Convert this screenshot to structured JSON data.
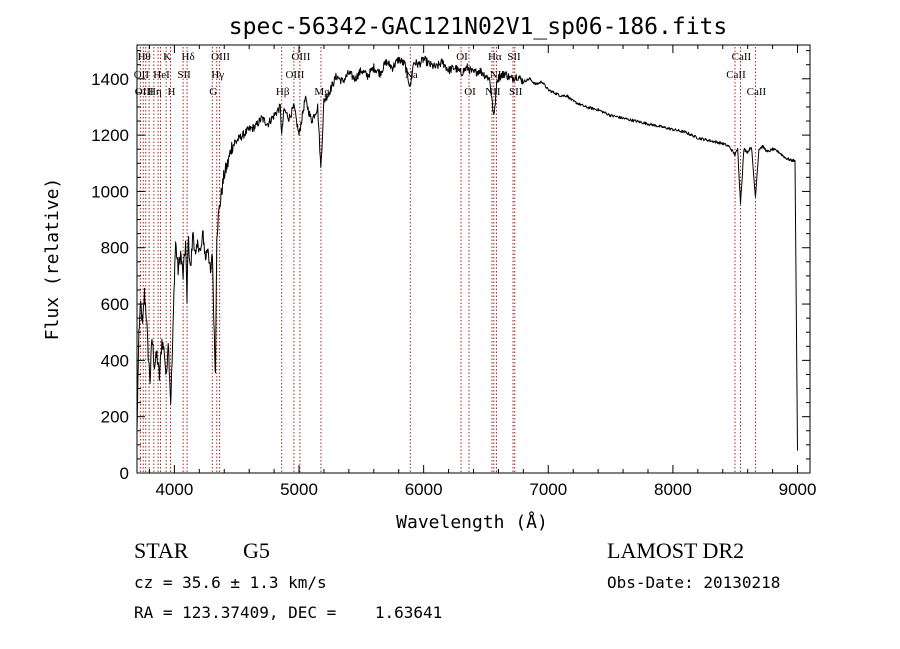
{
  "chart_data": {
    "type": "line",
    "title": "spec-56342-GAC121N02V1_sp06-186.fits",
    "xlabel": "Wavelength (Å)",
    "ylabel": "Flux (relative)",
    "xlim": [
      3700,
      9100
    ],
    "ylim": [
      0,
      1520
    ],
    "xticks": [
      4000,
      5000,
      6000,
      7000,
      8000,
      9000
    ],
    "yticks": [
      0,
      200,
      400,
      600,
      800,
      1000,
      1200,
      1400
    ],
    "grid": false,
    "line_color": "#000000",
    "marker_color": "#a0281e",
    "series": [
      {
        "x": [
          3700,
          3715,
          3730,
          3745,
          3760,
          3775,
          3790,
          3805,
          3820,
          3840,
          3860,
          3880,
          3900,
          3920,
          3935,
          3950,
          3970,
          3985,
          4000,
          4010,
          4030,
          4050,
          4070,
          4090,
          4101,
          4110,
          4130,
          4150,
          4170,
          4190,
          4210,
          4230,
          4250,
          4270,
          4290,
          4305,
          4320,
          4330,
          4340,
          4360,
          4380,
          4400,
          4430,
          4460,
          4500,
          4550,
          4600,
          4650,
          4700,
          4750,
          4800,
          4850,
          4861,
          4880,
          4920,
          4960,
          5000,
          5050,
          5100,
          5150,
          5175,
          5200,
          5250,
          5300,
          5350,
          5400,
          5450,
          5500,
          5550,
          5600,
          5650,
          5700,
          5750,
          5800,
          5850,
          5893,
          5920,
          5960,
          6000,
          6050,
          6100,
          6150,
          6200,
          6250,
          6300,
          6350,
          6400,
          6450,
          6500,
          6530,
          6563,
          6590,
          6620,
          6650,
          6700,
          6750,
          6800,
          6850,
          6900,
          6950,
          7000,
          7050,
          7100,
          7150,
          7200,
          7300,
          7400,
          7500,
          7600,
          7700,
          7800,
          7900,
          8000,
          8100,
          8200,
          8300,
          8400,
          8450,
          8498,
          8520,
          8542,
          8570,
          8600,
          8630,
          8662,
          8690,
          8720,
          8760,
          8800,
          8850,
          8900,
          8950,
          8980,
          9000
        ],
        "y": [
          150,
          500,
          600,
          520,
          640,
          560,
          420,
          330,
          480,
          380,
          420,
          340,
          470,
          430,
          330,
          480,
          250,
          440,
          700,
          820,
          720,
          780,
          700,
          820,
          600,
          840,
          720,
          860,
          760,
          820,
          780,
          850,
          760,
          810,
          700,
          780,
          480,
          350,
          850,
          940,
          1000,
          1060,
          1100,
          1160,
          1180,
          1200,
          1220,
          1230,
          1260,
          1240,
          1270,
          1300,
          1200,
          1290,
          1260,
          1300,
          1200,
          1330,
          1250,
          1300,
          1080,
          1320,
          1360,
          1410,
          1390,
          1420,
          1400,
          1430,
          1410,
          1440,
          1420,
          1460,
          1440,
          1470,
          1450,
          1370,
          1460,
          1450,
          1470,
          1450,
          1440,
          1460,
          1430,
          1440,
          1420,
          1440,
          1420,
          1430,
          1410,
          1400,
          1260,
          1400,
          1410,
          1420,
          1400,
          1410,
          1390,
          1400,
          1380,
          1390,
          1360,
          1350,
          1340,
          1340,
          1320,
          1300,
          1290,
          1270,
          1260,
          1250,
          1240,
          1230,
          1220,
          1210,
          1190,
          1180,
          1170,
          1160,
          1130,
          1150,
          960,
          1150,
          1140,
          1160,
          980,
          1150,
          1160,
          1140,
          1150,
          1140,
          1120,
          1110,
          1110,
          80
        ]
      }
    ],
    "lines": [
      {
        "x": 3727,
        "labels": [
          {
            "text": "OII",
            "row": 1
          }
        ]
      },
      {
        "x": 3750,
        "labels": [
          {
            "text": "Hθ",
            "row": 0
          },
          {
            "text": "OIII",
            "row": 2
          }
        ]
      },
      {
        "x": 3770,
        "labels": []
      },
      {
        "x": 3797,
        "labels": []
      },
      {
        "x": 3835,
        "labels": [
          {
            "text": "Hη",
            "row": 2
          }
        ]
      },
      {
        "x": 3869,
        "labels": []
      },
      {
        "x": 3889,
        "labels": [
          {
            "text": "HeI",
            "row": 1
          }
        ]
      },
      {
        "x": 3934,
        "labels": [
          {
            "text": "K",
            "row": 0
          }
        ]
      },
      {
        "x": 3969,
        "labels": [
          {
            "text": "H",
            "row": 2
          }
        ]
      },
      {
        "x": 4070,
        "labels": [
          {
            "text": "SII",
            "row": 1
          }
        ]
      },
      {
        "x": 4102,
        "labels": [
          {
            "text": "Hδ",
            "row": 0
          }
        ]
      },
      {
        "x": 4304,
        "labels": [
          {
            "text": "G",
            "row": 2
          }
        ]
      },
      {
        "x": 4340,
        "labels": [
          {
            "text": "Hγ",
            "row": 1
          }
        ]
      },
      {
        "x": 4363,
        "labels": [
          {
            "text": "OIII",
            "row": 0
          }
        ]
      },
      {
        "x": 4861,
        "labels": [
          {
            "text": "Hβ",
            "row": 2
          }
        ]
      },
      {
        "x": 4959,
        "labels": [
          {
            "text": "OIII",
            "row": 1
          }
        ]
      },
      {
        "x": 5007,
        "labels": [
          {
            "text": "OIII",
            "row": 0
          }
        ]
      },
      {
        "x": 5176,
        "labels": [
          {
            "text": "Mg",
            "row": 2
          }
        ]
      },
      {
        "x": 5893,
        "labels": [
          {
            "text": "Na",
            "row": 1
          }
        ]
      },
      {
        "x": 6300,
        "labels": [
          {
            "text": "OI",
            "row": 0
          }
        ]
      },
      {
        "x": 6364,
        "labels": [
          {
            "text": "OI",
            "row": 2
          }
        ]
      },
      {
        "x": 6548,
        "labels": [
          {
            "text": "NII",
            "row": 2
          }
        ]
      },
      {
        "x": 6563,
        "labels": [
          {
            "text": "Hα",
            "row": 0
          }
        ]
      },
      {
        "x": 6584,
        "labels": [
          {
            "text": "NII",
            "row": 1
          }
        ]
      },
      {
        "x": 6717,
        "labels": [
          {
            "text": "SII",
            "row": 0
          }
        ]
      },
      {
        "x": 6731,
        "labels": [
          {
            "text": "SII",
            "row": 2
          }
        ]
      },
      {
        "x": 8498,
        "labels": [
          {
            "text": "CaII",
            "row": 1
          }
        ]
      },
      {
        "x": 8542,
        "labels": [
          {
            "text": "CaII",
            "row": 0
          }
        ]
      },
      {
        "x": 8662,
        "labels": [
          {
            "text": "CaII",
            "row": 2
          }
        ]
      }
    ]
  },
  "info": {
    "class": "STAR",
    "subclass": "G5",
    "cz_text": "cz = 35.6 ± 1.3 km/s",
    "radec_text": "RA = 123.37409, DEC =    1.63641",
    "survey": "LAMOST DR2",
    "obs_date_text": "Obs-Date: 20130218"
  }
}
